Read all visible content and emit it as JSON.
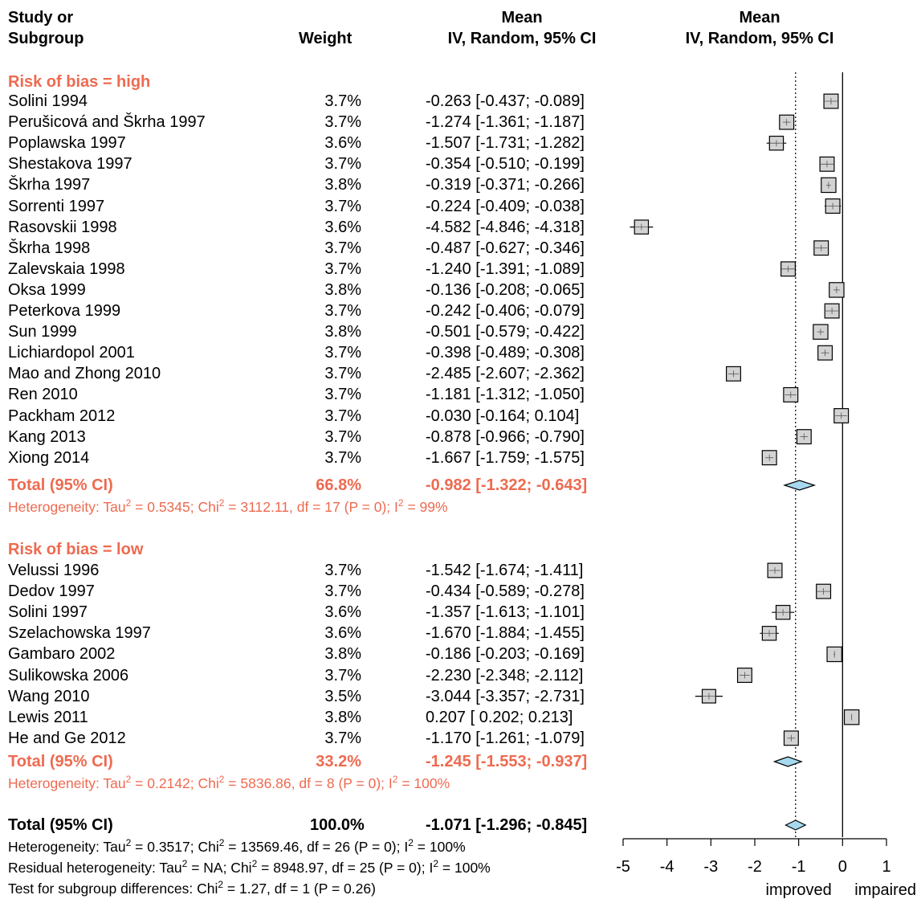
{
  "header": {
    "study_line1": "Study or",
    "study_line2": "Subgroup",
    "weight": "Weight",
    "ci_line1": "Mean",
    "ci_line2": "IV, Random, 95% CI",
    "plot_line1": "Mean",
    "plot_line2": "IV, Random, 95% CI"
  },
  "colors": {
    "subgroup": "#ee6a50",
    "box_fill": "#d3d3d3",
    "diamond_fill": "#a6d9ef"
  },
  "subgroups": [
    {
      "title": "Risk of bias = high",
      "total_label": "Total (95% CI)",
      "total_weight": "66.8%",
      "total_ci": "-0.982 [-1.322; -0.643]",
      "heterogeneity": "Heterogeneity: Tau² = 0.5345; Chi² = 3112.11, df = 17 (P = 0); I² = 99%"
    },
    {
      "title": "Risk of bias = low",
      "total_label": "Total (95% CI)",
      "total_weight": "33.2%",
      "total_ci": "-1.245 [-1.553; -0.937]",
      "heterogeneity": "Heterogeneity: Tau² = 0.2142; Chi² = 5836.86, df = 8 (P = 0); I² = 100%"
    }
  ],
  "overall": {
    "label": "Total (95% CI)",
    "weight": "100.0%",
    "ci": "-1.071 [-1.296; -0.845]",
    "notes": [
      "Heterogeneity: Tau² = 0.3517; Chi² = 13569.46, df = 26 (P = 0); I² = 100%",
      "Residual heterogeneity: Tau² = NA; Chi² = 8948.97, df = 25 (P = 0); I² = 100%",
      "Test for subgroup differences: Chi² = 1.27, df = 1 (P = 0.26)"
    ]
  },
  "chart_data": {
    "type": "forest",
    "xlim": [
      -5,
      1
    ],
    "xticks": [
      "-5",
      "-4",
      "-3",
      "-2",
      "-1",
      "0",
      "1"
    ],
    "xlabel_left": "improved",
    "xlabel_right": "impaired",
    "reference_line": 0,
    "dotted_line": -1.071,
    "studies": [
      {
        "name": "Solini 1994",
        "weight": "3.7%",
        "ci": "-0.263 [-0.437; -0.089]",
        "group": 0,
        "mean": -0.263,
        "lower": -0.437,
        "upper": -0.089,
        "w": 3.7
      },
      {
        "name": "Perušicová and Škrha 1997",
        "weight": "3.7%",
        "ci": "-1.274 [-1.361; -1.187]",
        "group": 0,
        "mean": -1.274,
        "lower": -1.361,
        "upper": -1.187,
        "w": 3.7
      },
      {
        "name": "Poplawska 1997",
        "weight": "3.6%",
        "ci": "-1.507 [-1.731; -1.282]",
        "group": 0,
        "mean": -1.507,
        "lower": -1.731,
        "upper": -1.282,
        "w": 3.6
      },
      {
        "name": "Shestakova 1997",
        "weight": "3.7%",
        "ci": "-0.354 [-0.510; -0.199]",
        "group": 0,
        "mean": -0.354,
        "lower": -0.51,
        "upper": -0.199,
        "w": 3.7
      },
      {
        "name": "Škrha 1997",
        "weight": "3.8%",
        "ci": "-0.319 [-0.371; -0.266]",
        "group": 0,
        "mean": -0.319,
        "lower": -0.371,
        "upper": -0.266,
        "w": 3.8
      },
      {
        "name": "Sorrenti 1997",
        "weight": "3.7%",
        "ci": "-0.224 [-0.409; -0.038]",
        "group": 0,
        "mean": -0.224,
        "lower": -0.409,
        "upper": -0.038,
        "w": 3.7
      },
      {
        "name": "Rasovskii 1998",
        "weight": "3.6%",
        "ci": "-4.582 [-4.846; -4.318]",
        "group": 0,
        "mean": -4.582,
        "lower": -4.846,
        "upper": -4.318,
        "w": 3.6
      },
      {
        "name": "Škrha 1998",
        "weight": "3.7%",
        "ci": "-0.487 [-0.627; -0.346]",
        "group": 0,
        "mean": -0.487,
        "lower": -0.627,
        "upper": -0.346,
        "w": 3.7
      },
      {
        "name": "Zalevskaia 1998",
        "weight": "3.7%",
        "ci": "-1.240 [-1.391; -1.089]",
        "group": 0,
        "mean": -1.24,
        "lower": -1.391,
        "upper": -1.089,
        "w": 3.7
      },
      {
        "name": "Oksa 1999",
        "weight": "3.8%",
        "ci": "-0.136 [-0.208; -0.065]",
        "group": 0,
        "mean": -0.136,
        "lower": -0.208,
        "upper": -0.065,
        "w": 3.8
      },
      {
        "name": "Peterkova 1999",
        "weight": "3.7%",
        "ci": "-0.242 [-0.406; -0.079]",
        "group": 0,
        "mean": -0.242,
        "lower": -0.406,
        "upper": -0.079,
        "w": 3.7
      },
      {
        "name": "Sun 1999",
        "weight": "3.8%",
        "ci": "-0.501 [-0.579; -0.422]",
        "group": 0,
        "mean": -0.501,
        "lower": -0.579,
        "upper": -0.422,
        "w": 3.8
      },
      {
        "name": "Lichiardopol 2001",
        "weight": "3.7%",
        "ci": "-0.398 [-0.489; -0.308]",
        "group": 0,
        "mean": -0.398,
        "lower": -0.489,
        "upper": -0.308,
        "w": 3.7
      },
      {
        "name": "Mao and Zhong 2010",
        "weight": "3.7%",
        "ci": "-2.485 [-2.607; -2.362]",
        "group": 0,
        "mean": -2.485,
        "lower": -2.607,
        "upper": -2.362,
        "w": 3.7
      },
      {
        "name": "Ren 2010",
        "weight": "3.7%",
        "ci": "-1.181 [-1.312; -1.050]",
        "group": 0,
        "mean": -1.181,
        "lower": -1.312,
        "upper": -1.05,
        "w": 3.7
      },
      {
        "name": "Packham 2012",
        "weight": "3.7%",
        "ci": "-0.030 [-0.164;  0.104]",
        "group": 0,
        "mean": -0.03,
        "lower": -0.164,
        "upper": 0.104,
        "w": 3.7
      },
      {
        "name": "Kang 2013",
        "weight": "3.7%",
        "ci": "-0.878 [-0.966; -0.790]",
        "group": 0,
        "mean": -0.878,
        "lower": -0.966,
        "upper": -0.79,
        "w": 3.7
      },
      {
        "name": "Xiong 2014",
        "weight": "3.7%",
        "ci": "-1.667 [-1.759; -1.575]",
        "group": 0,
        "mean": -1.667,
        "lower": -1.759,
        "upper": -1.575,
        "w": 3.7
      },
      {
        "name": "Velussi 1996",
        "weight": "3.7%",
        "ci": "-1.542 [-1.674; -1.411]",
        "group": 1,
        "mean": -1.542,
        "lower": -1.674,
        "upper": -1.411,
        "w": 3.7
      },
      {
        "name": "Dedov 1997",
        "weight": "3.7%",
        "ci": "-0.434 [-0.589; -0.278]",
        "group": 1,
        "mean": -0.434,
        "lower": -0.589,
        "upper": -0.278,
        "w": 3.7
      },
      {
        "name": "Solini 1997",
        "weight": "3.6%",
        "ci": "-1.357 [-1.613; -1.101]",
        "group": 1,
        "mean": -1.357,
        "lower": -1.613,
        "upper": -1.101,
        "w": 3.6
      },
      {
        "name": "Szelachowska 1997",
        "weight": "3.6%",
        "ci": "-1.670 [-1.884; -1.455]",
        "group": 1,
        "mean": -1.67,
        "lower": -1.884,
        "upper": -1.455,
        "w": 3.6
      },
      {
        "name": "Gambaro 2002",
        "weight": "3.8%",
        "ci": "-0.186 [-0.203; -0.169]",
        "group": 1,
        "mean": -0.186,
        "lower": -0.203,
        "upper": -0.169,
        "w": 3.8
      },
      {
        "name": "Sulikowska 2006",
        "weight": "3.7%",
        "ci": "-2.230 [-2.348; -2.112]",
        "group": 1,
        "mean": -2.23,
        "lower": -2.348,
        "upper": -2.112,
        "w": 3.7
      },
      {
        "name": "Wang 2010",
        "weight": "3.5%",
        "ci": "-3.044 [-3.357; -2.731]",
        "group": 1,
        "mean": -3.044,
        "lower": -3.357,
        "upper": -2.731,
        "w": 3.5
      },
      {
        "name": "Lewis 2011",
        "weight": "3.8%",
        "ci": " 0.207 [ 0.202;  0.213]",
        "group": 1,
        "mean": 0.207,
        "lower": 0.202,
        "upper": 0.213,
        "w": 3.8
      },
      {
        "name": "He and Ge 2012",
        "weight": "3.7%",
        "ci": "-1.170 [-1.261; -1.079]",
        "group": 1,
        "mean": -1.17,
        "lower": -1.261,
        "upper": -1.079,
        "w": 3.7
      }
    ],
    "subgroup_estimates": [
      {
        "mean": -0.982,
        "lower": -1.322,
        "upper": -0.643
      },
      {
        "mean": -1.245,
        "lower": -1.553,
        "upper": -0.937
      }
    ],
    "overall_estimate": {
      "mean": -1.071,
      "lower": -1.296,
      "upper": -0.845
    }
  }
}
